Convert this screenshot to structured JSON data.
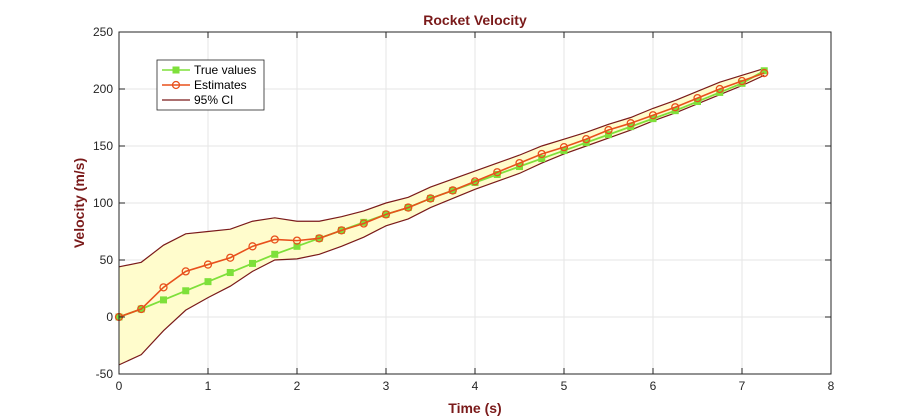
{
  "chart_data": {
    "type": "line",
    "title": "Rocket Velocity",
    "xlabel": "Time (s)",
    "ylabel": "Velocity (m/s)",
    "xlim": [
      0,
      8
    ],
    "ylim": [
      -50,
      250
    ],
    "xticks": [
      "0",
      "1",
      "2",
      "3",
      "4",
      "5",
      "6",
      "7",
      "8"
    ],
    "yticks": [
      "-50",
      "0",
      "50",
      "100",
      "150",
      "200",
      "250"
    ],
    "grid": true,
    "legend_position": "top-left",
    "x": [
      0,
      0.25,
      0.5,
      0.75,
      1.0,
      1.25,
      1.5,
      1.75,
      2.0,
      2.25,
      2.5,
      2.75,
      3.0,
      3.25,
      3.5,
      3.75,
      4.0,
      4.25,
      4.5,
      4.75,
      5.0,
      5.25,
      5.5,
      5.75,
      6.0,
      6.25,
      6.5,
      6.75,
      7.0,
      7.25
    ],
    "series": [
      {
        "name": "True values",
        "color": "#7ee03a",
        "marker": "square",
        "values": [
          0,
          7,
          15,
          23,
          31,
          39,
          47,
          55,
          62,
          69,
          76,
          83,
          90,
          96,
          104,
          111,
          118,
          125,
          132,
          139,
          146,
          153,
          160,
          167,
          174,
          181,
          189,
          197,
          205,
          216
        ]
      },
      {
        "name": "Estimates",
        "color": "#e8501c",
        "marker": "circle",
        "values": [
          0,
          7,
          26,
          40,
          46,
          52,
          62,
          68,
          67,
          69,
          76,
          82,
          90,
          96,
          104,
          111,
          119,
          127,
          135,
          143,
          149,
          156,
          164,
          170,
          177,
          184,
          192,
          200,
          207,
          214
        ]
      },
      {
        "name": "95% CI",
        "color": "#7a1a1a",
        "fill": "#fffccc",
        "upper": [
          44,
          48,
          63,
          73,
          75,
          77,
          84,
          87,
          84,
          84,
          88,
          93,
          100,
          105,
          114,
          121,
          128,
          135,
          142,
          150,
          156,
          162,
          169,
          175,
          183,
          190,
          198,
          206,
          212,
          218
        ],
        "lower": [
          -42,
          -33,
          -12,
          6,
          17,
          27,
          40,
          50,
          51,
          55,
          62,
          70,
          80,
          86,
          96,
          104,
          112,
          119,
          126,
          135,
          143,
          150,
          157,
          164,
          172,
          179,
          187,
          195,
          203,
          212
        ]
      }
    ]
  }
}
